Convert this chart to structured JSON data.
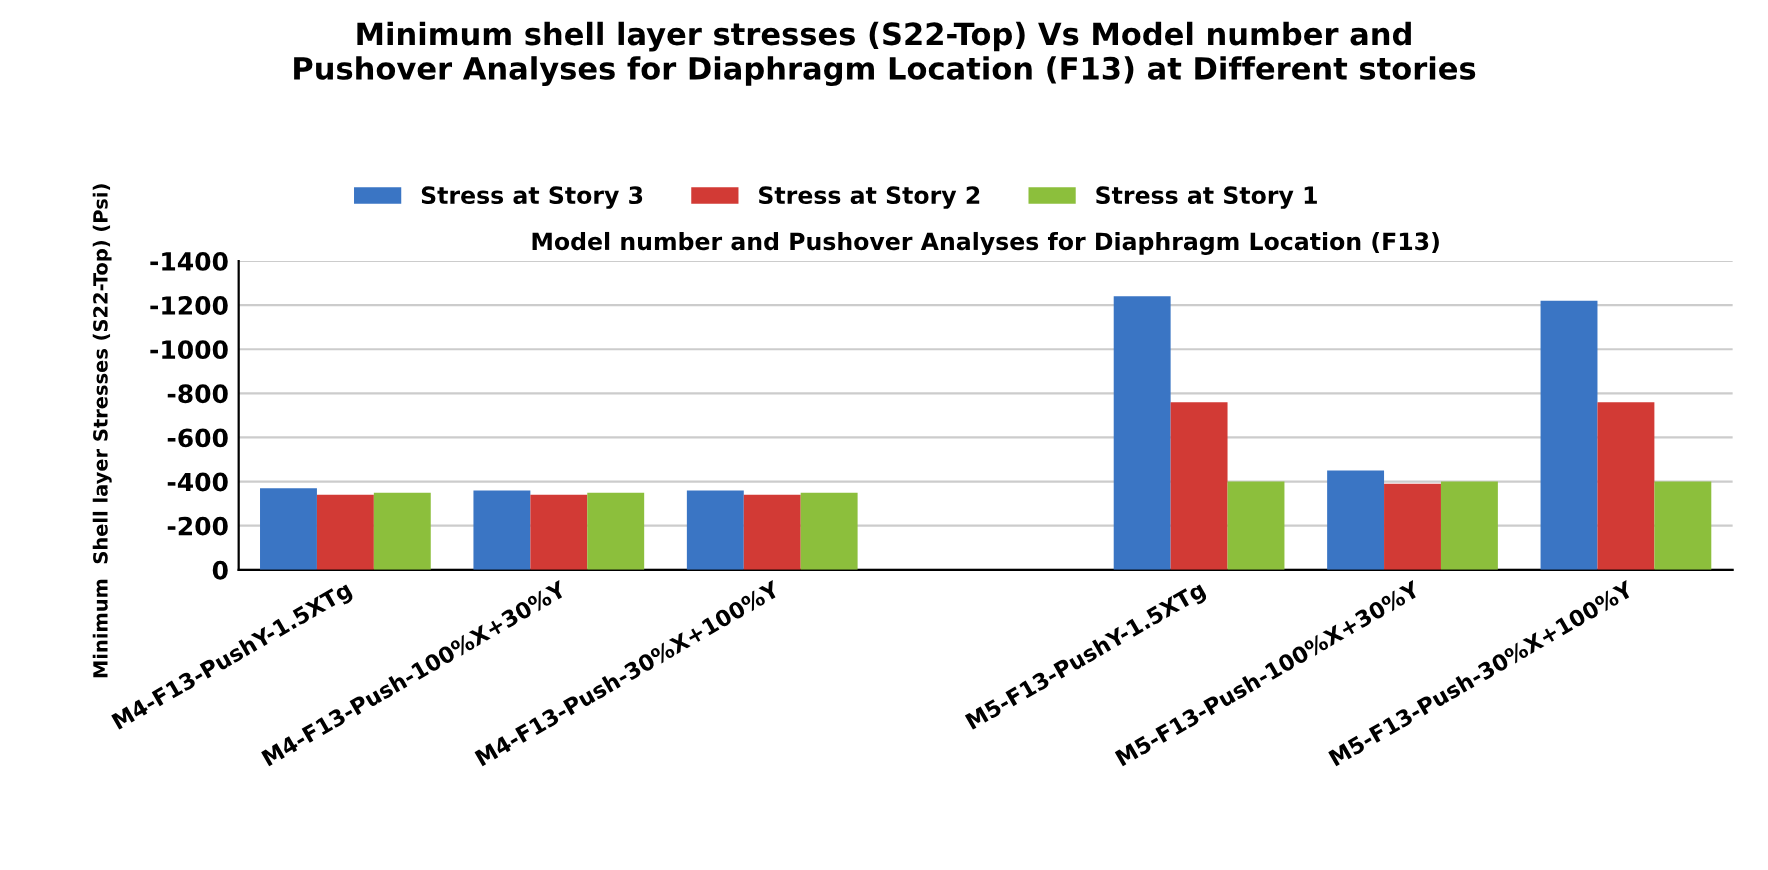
{
  "chart_data": {
    "type": "bar",
    "title": "Minimum shell layer stresses (S22-Top) Vs Model number and\nPushover Analyses for Diaphragm Location (F13) at Different stories",
    "xlabel": "Model number and Pushover Analyses for Diaphragm Location (F13)",
    "ylabel": "Minimum  Shell layer Stresses (S22-Top) (Psi)",
    "categories": [
      "M4-F13-PushY-1.5XTg",
      "M4-F13-Push-100%X+30%Y",
      "M4-F13-Push-30%X+100%Y",
      null,
      "M5-F13-PushY-1.5XTg",
      "M5-F13-Push-100%X+30%Y",
      "M5-F13-Push-30%X+100%Y"
    ],
    "series": [
      {
        "name": "Stress at Story 3",
        "color": "#3a75c4",
        "values": [
          -370,
          -360,
          -360,
          null,
          -1240,
          -450,
          -1220
        ]
      },
      {
        "name": "Stress at Story 2",
        "color": "#d23a35",
        "values": [
          -340,
          -340,
          -340,
          null,
          -760,
          -390,
          -760
        ]
      },
      {
        "name": "Stress at Story 1",
        "color": "#8cbf3c",
        "values": [
          -350,
          -350,
          -350,
          null,
          -400,
          -400,
          -400
        ]
      }
    ],
    "ylim": [
      0,
      -1400
    ],
    "yticks": [
      0,
      -200,
      -400,
      -600,
      -800,
      -1000,
      -1200,
      -1400
    ],
    "grid": "y",
    "legend": "top"
  }
}
